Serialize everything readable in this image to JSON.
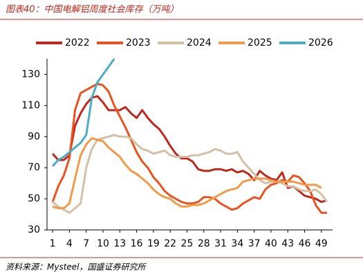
{
  "chart_data": {
    "type": "line",
    "title": "图表40：中国电解铝周度社会库存（万吨）",
    "source": "资料来源：Mysteel，国盛证券研究所",
    "x": [
      1,
      2,
      3,
      4,
      5,
      6,
      7,
      8,
      9,
      10,
      11,
      12,
      13,
      14,
      15,
      16,
      17,
      18,
      19,
      20,
      21,
      22,
      23,
      24,
      25,
      26,
      27,
      28,
      29,
      30,
      31,
      32,
      33,
      34,
      35,
      36,
      37,
      38,
      39,
      40,
      41,
      42,
      43,
      44,
      45,
      46,
      47,
      48,
      49,
      50
    ],
    "xlim": [
      0,
      51
    ],
    "xticks": [
      1,
      4,
      7,
      10,
      13,
      16,
      19,
      22,
      25,
      28,
      31,
      34,
      37,
      40,
      43,
      46,
      49
    ],
    "ylim": [
      30,
      140
    ],
    "yticks": [
      30,
      50,
      70,
      90,
      110,
      130
    ],
    "series": [
      {
        "name": "2022",
        "color": "#c0271b",
        "values": [
          79,
          75,
          75,
          78,
          97,
          105,
          111,
          115,
          116,
          112,
          107,
          107,
          107,
          109,
          105,
          102,
          107,
          102,
          98,
          95,
          90,
          84,
          79,
          76,
          76,
          74,
          69,
          68,
          68,
          69,
          69,
          68,
          69,
          67,
          68,
          66,
          62,
          68,
          65,
          63,
          62,
          67,
          57,
          58,
          55,
          52,
          51,
          50,
          48,
          49
        ]
      },
      {
        "name": "2023",
        "color": "#e8531f",
        "values": [
          48,
          58,
          65,
          76,
          107,
          118,
          120,
          122,
          124,
          123,
          119,
          110,
          103,
          96,
          88,
          80,
          74,
          70,
          64,
          60,
          55,
          52,
          50,
          48,
          47,
          47,
          48,
          51,
          51,
          50,
          47,
          45,
          43,
          44,
          47,
          49,
          51,
          50,
          56,
          59,
          60,
          62,
          61,
          65,
          64,
          60,
          55,
          46,
          41,
          41
        ]
      },
      {
        "name": "2024",
        "color": "#d4c0a5",
        "values": [
          48,
          45,
          43,
          41,
          44,
          47,
          70,
          82,
          88,
          89,
          90,
          91,
          90,
          90,
          89,
          85,
          82,
          81,
          79,
          80,
          81,
          78,
          77,
          77,
          77,
          78,
          78,
          79,
          80,
          82,
          81,
          79,
          79,
          80,
          74,
          70,
          66,
          62,
          60,
          61,
          61,
          60,
          58,
          58,
          56,
          55,
          55,
          56,
          53,
          48
        ]
      },
      {
        "name": "2025",
        "color": "#f39a49",
        "values": [
          45,
          44,
          44,
          47,
          63,
          78,
          85,
          89,
          88,
          87,
          83,
          80,
          77,
          72,
          68,
          66,
          63,
          60,
          56,
          53,
          51,
          50,
          47,
          45,
          45,
          46,
          46,
          47,
          49,
          51,
          53,
          55,
          56,
          57,
          61,
          62,
          63,
          63,
          63,
          62,
          61,
          61,
          61,
          61,
          60,
          59,
          59,
          59,
          57,
          null
        ]
      },
      {
        "name": "2026",
        "color": "#4bacc6",
        "values": [
          71,
          75,
          77,
          80,
          83,
          86,
          91,
          115,
          125,
          130,
          135,
          140,
          null,
          null,
          null,
          null,
          null,
          null,
          null,
          null,
          null,
          null,
          null,
          null,
          null,
          null,
          null,
          null,
          null,
          null,
          null,
          null,
          null,
          null,
          null,
          null,
          null,
          null,
          null,
          null,
          null,
          null,
          null,
          null,
          null,
          null,
          null,
          null,
          null,
          null
        ]
      }
    ]
  }
}
